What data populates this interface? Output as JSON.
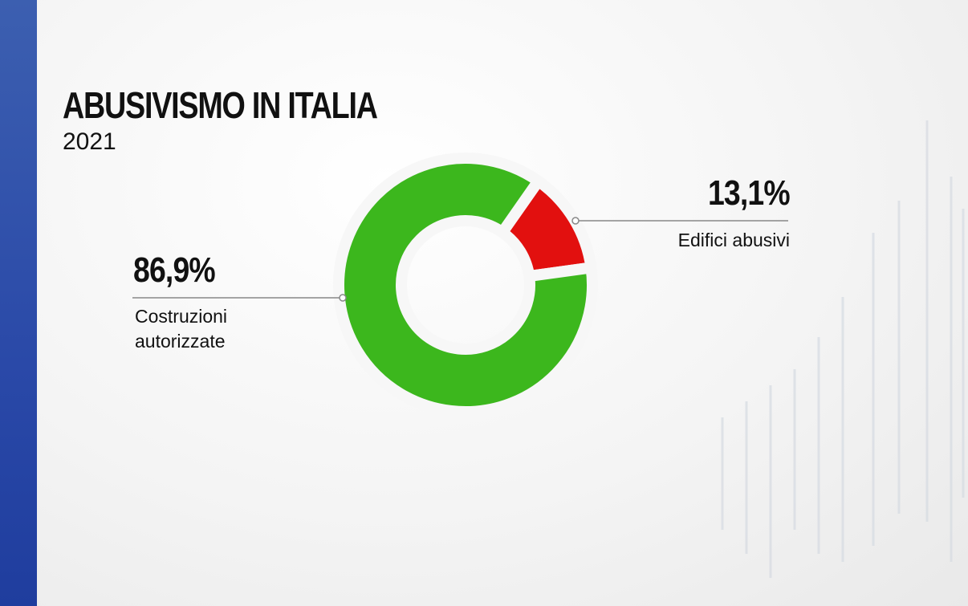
{
  "chart_data": {
    "type": "donut",
    "title": "ABUSIVISMO IN ITALIA",
    "subtitle": "2021",
    "categories": [
      "Costruzioni autorizzate",
      "Edifici abusivi"
    ],
    "values": [
      86.9,
      13.1
    ],
    "value_labels": [
      "86,9%",
      "13,1%"
    ],
    "colors": [
      "#3cb71d",
      "#e2100f"
    ]
  }
}
